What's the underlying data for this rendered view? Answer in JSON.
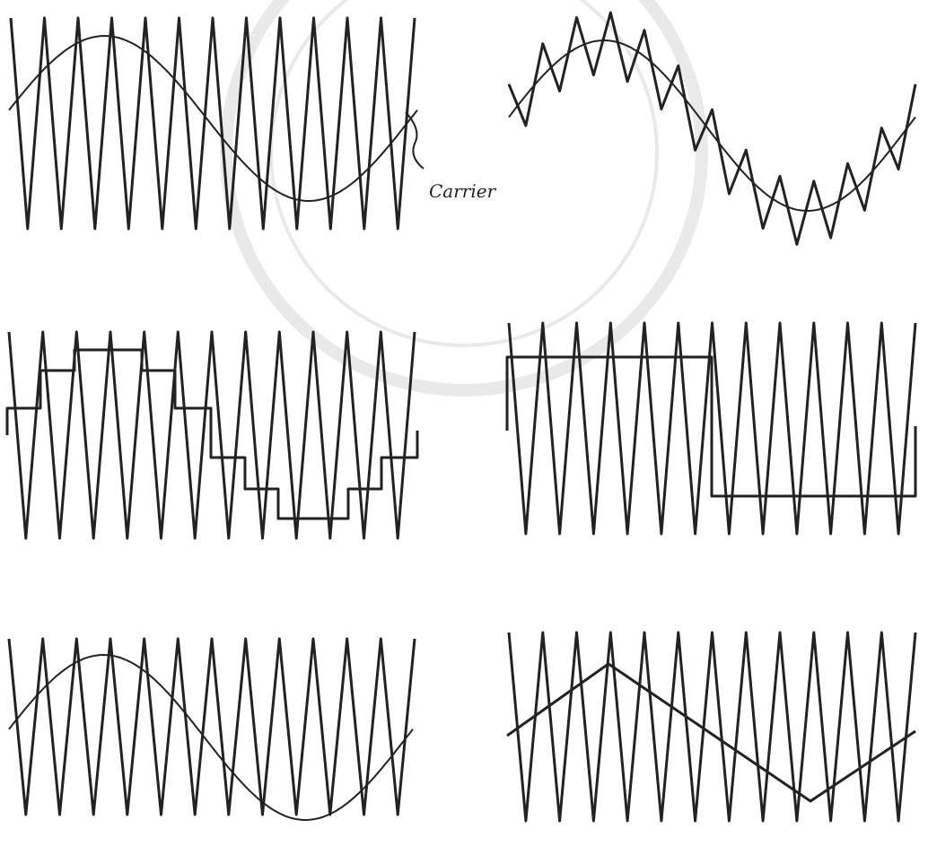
{
  "labels": {
    "carrier": "Carrier"
  }
}
